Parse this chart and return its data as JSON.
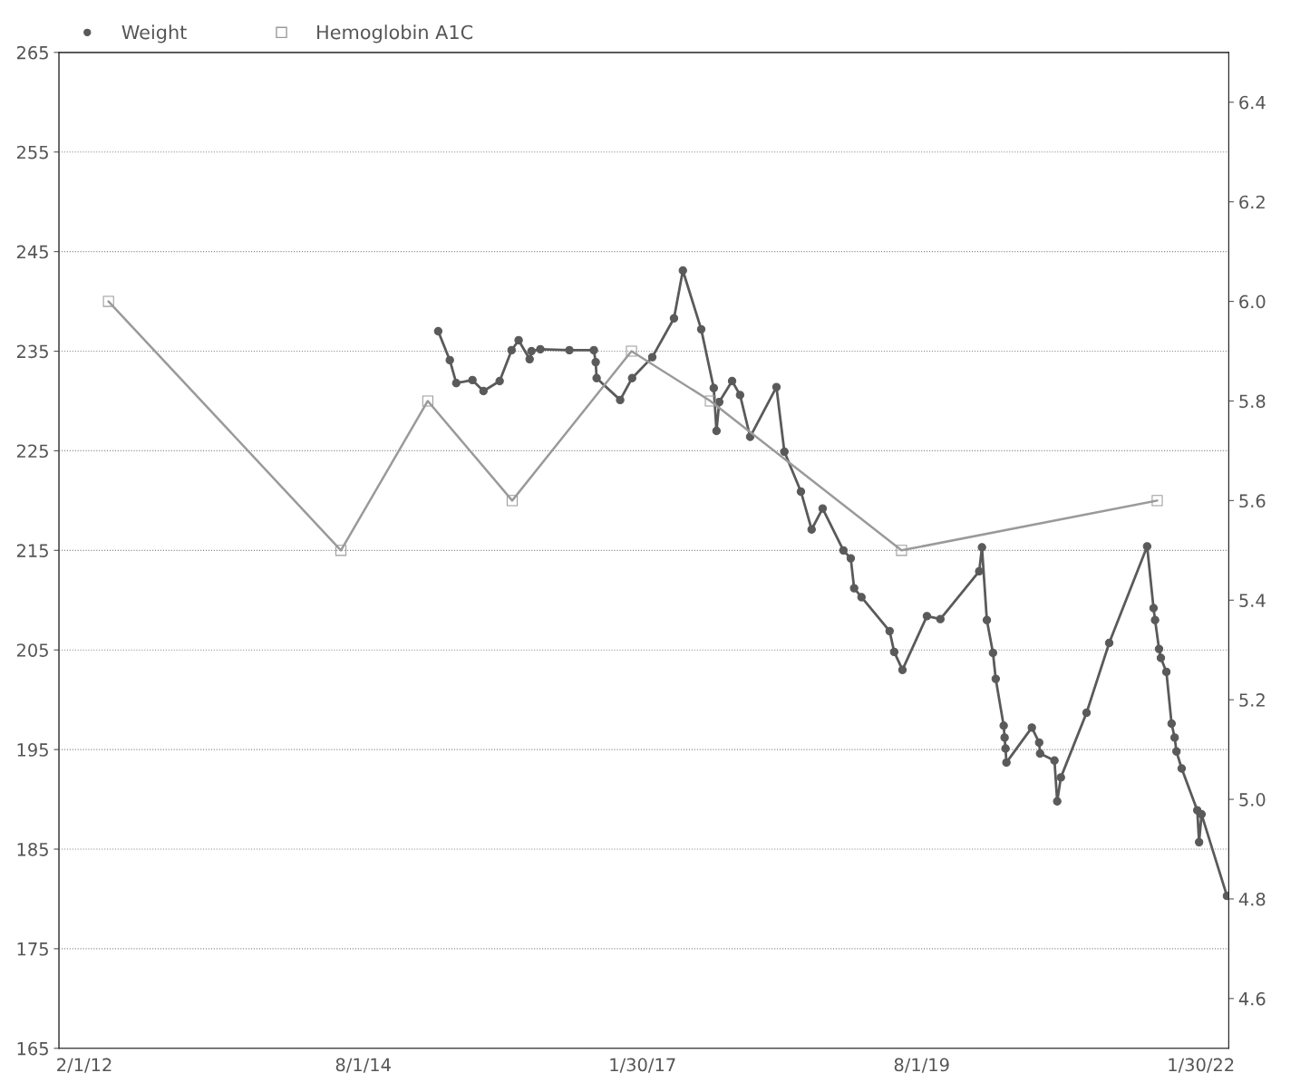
{
  "chart_data": {
    "type": "line",
    "legend": "top left",
    "grid": "y",
    "xlim": [
      "2011-11-10",
      "2022-05-01"
    ],
    "xticks": [
      {
        "value": "2012-02-01",
        "label": "2/1/12"
      },
      {
        "value": "2014-08-01",
        "label": "8/1/14"
      },
      {
        "value": "2017-01-30",
        "label": "1/30/17"
      },
      {
        "value": "2019-08-01",
        "label": "8/1/19"
      },
      {
        "value": "2022-01-30",
        "label": "1/30/22"
      }
    ],
    "ylim": [
      165,
      265
    ],
    "yticks": [
      165,
      175,
      185,
      195,
      205,
      215,
      225,
      235,
      245,
      255,
      265
    ],
    "y2lim": [
      4.5,
      6.5
    ],
    "y2ticks": [
      {
        "value": 4.6,
        "label": "4.6"
      },
      {
        "value": 4.8,
        "label": "4.8"
      },
      {
        "value": 5.0,
        "label": "5.0"
      },
      {
        "value": 5.2,
        "label": "5.2"
      },
      {
        "value": 5.4,
        "label": "5.4"
      },
      {
        "value": 5.6,
        "label": "5.6"
      },
      {
        "value": 5.8,
        "label": "5.8"
      },
      {
        "value": 6.0,
        "label": "6.0"
      },
      {
        "value": 6.2,
        "label": "6.2"
      },
      {
        "value": 6.4,
        "label": "6.4"
      }
    ],
    "series": [
      {
        "name": "Weight",
        "color": "#5a5a5a",
        "marker": "circle",
        "x": [
          "2015-04-03",
          "2015-05-11",
          "2015-06-01",
          "2015-07-24",
          "2015-08-29",
          "2015-10-21",
          "2015-11-29",
          "2015-12-22",
          "2016-01-27",
          "2016-02-02",
          "2016-03-02",
          "2016-06-05",
          "2016-08-24",
          "2016-08-30",
          "2016-09-02",
          "2016-11-18",
          "2016-12-27",
          "2017-03-03",
          "2017-05-13",
          "2017-06-11",
          "2017-08-10",
          "2017-09-20",
          "2017-09-29",
          "2017-10-08",
          "2017-11-19",
          "2017-12-15",
          "2018-01-17",
          "2018-04-13",
          "2018-05-09",
          "2018-07-02",
          "2018-08-06",
          "2018-09-11",
          "2018-11-18",
          "2018-12-12",
          "2018-12-23",
          "2019-01-16",
          "2019-04-18",
          "2019-05-03",
          "2019-05-30",
          "2019-08-18",
          "2019-10-01",
          "2020-02-05",
          "2020-02-14",
          "2020-03-01",
          "2020-03-21",
          "2020-03-30",
          "2020-04-25",
          "2020-04-28",
          "2020-05-01",
          "2020-05-04",
          "2020-07-26",
          "2020-08-19",
          "2020-08-22",
          "2020-10-08",
          "2020-10-17",
          "2020-10-29",
          "2021-01-21",
          "2021-04-05",
          "2021-08-07",
          "2021-08-28",
          "2021-09-02",
          "2021-09-15",
          "2021-09-21",
          "2021-10-09",
          "2021-10-26",
          "2021-11-05",
          "2021-11-11",
          "2021-11-28",
          "2022-01-18",
          "2022-01-24",
          "2022-02-01",
          "2022-04-25"
        ],
        "values": [
          237,
          234.1,
          231.8,
          232.1,
          231,
          232,
          235.1,
          236.1,
          234.2,
          235,
          235.2,
          235.1,
          235.1,
          233.9,
          232.3,
          230.1,
          232.3,
          234.4,
          238.3,
          243.1,
          237.2,
          231.3,
          227,
          229.9,
          232,
          230.6,
          226.4,
          231.4,
          224.9,
          220.9,
          217.1,
          219.2,
          215,
          214.2,
          211.2,
          210.3,
          206.9,
          204.8,
          203,
          208.4,
          208.1,
          212.9,
          215.3,
          208,
          204.7,
          202.1,
          197.4,
          196.2,
          195.1,
          193.7,
          197.2,
          195.7,
          194.6,
          193.9,
          189.8,
          192.2,
          198.7,
          205.7,
          215.4,
          209.2,
          208,
          205.1,
          204.2,
          202.8,
          197.6,
          196.2,
          194.8,
          193.1,
          188.9,
          185.7,
          188.5,
          180.3
        ]
      },
      {
        "name": "Hemoglobin A1C",
        "color": "#9a9a9a",
        "marker": "square",
        "axis": "y2",
        "x": [
          "2012-04-20",
          "2014-05-20",
          "2015-02-28",
          "2015-12-01",
          "2016-12-25",
          "2017-09-09",
          "2019-05-27",
          "2021-09-09"
        ],
        "values": [
          6.0,
          5.5,
          5.8,
          5.6,
          5.9,
          5.8,
          5.5,
          5.6
        ]
      }
    ]
  }
}
